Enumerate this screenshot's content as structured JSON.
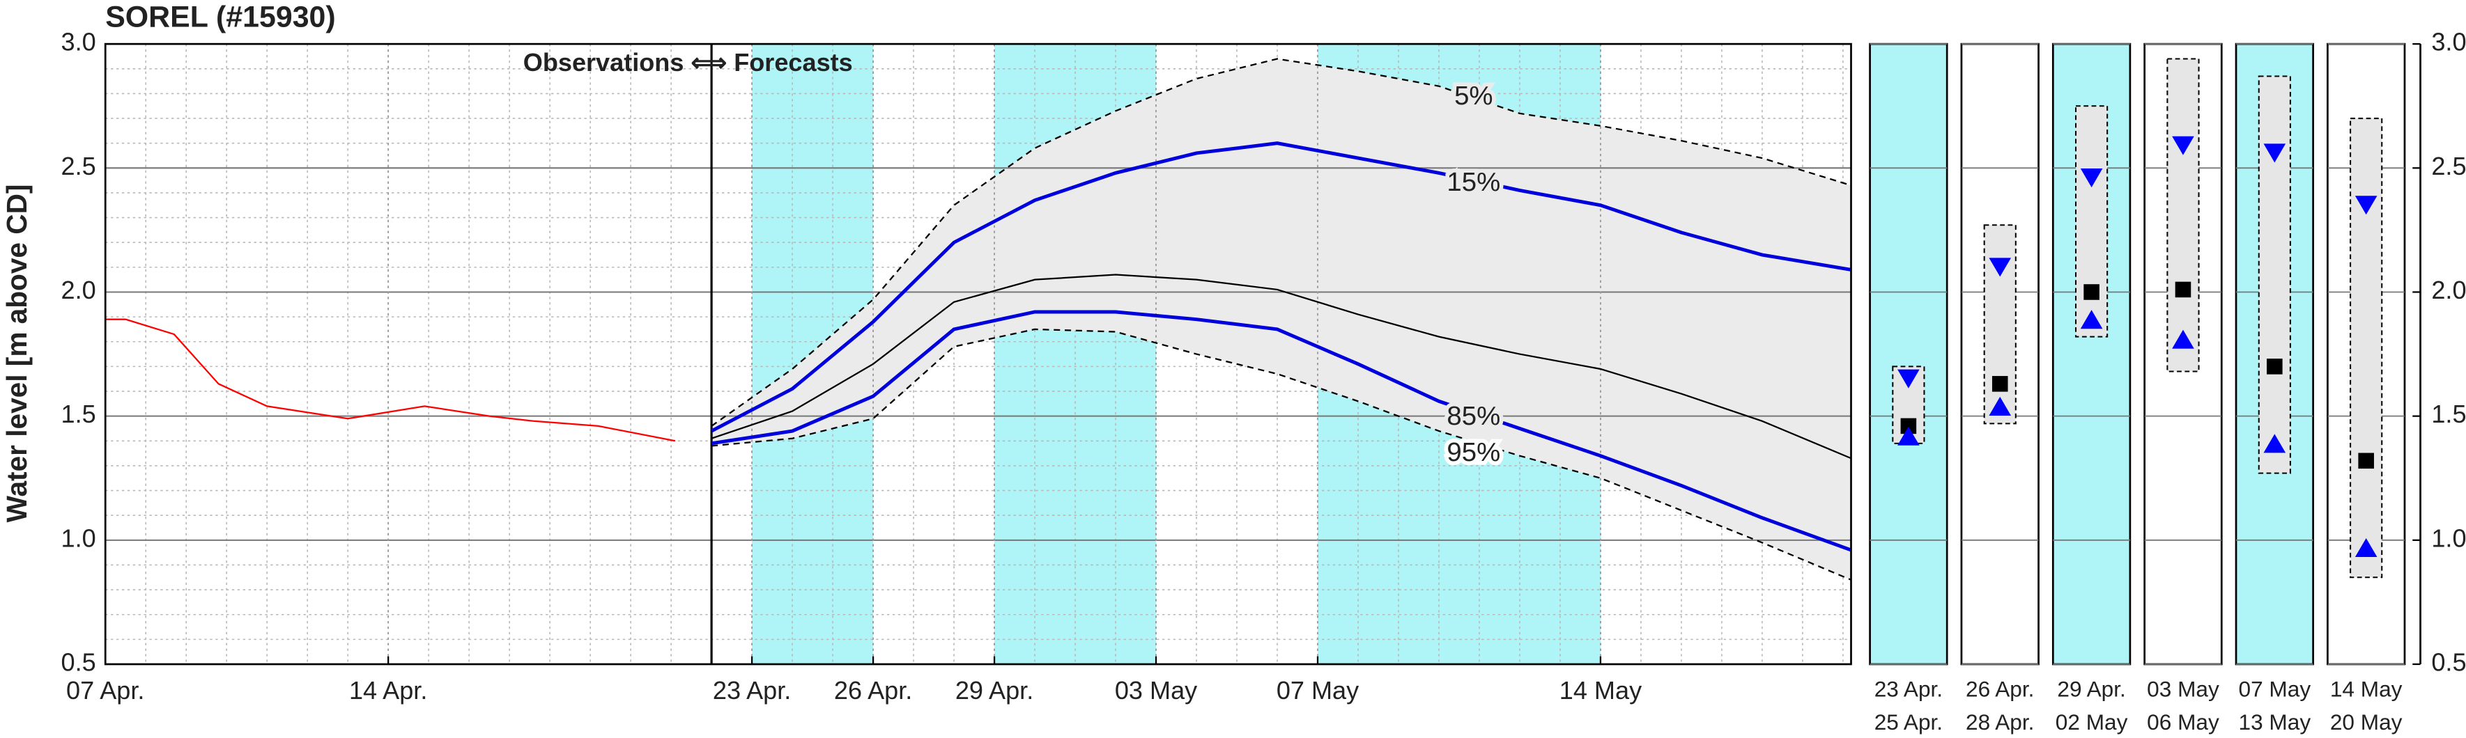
{
  "chart_data": [
    {
      "type": "line",
      "title": "SOREL (#15930)",
      "y_label": "Water level [m above CD]",
      "annotation": "Observations ⟺ Forecasts",
      "xlim": [
        7,
        50.2
      ],
      "xticks": [
        {
          "value": 7,
          "label": "07 Apr."
        },
        {
          "value": 14,
          "label": "14 Apr."
        },
        {
          "value": 23,
          "label": "23 Apr."
        },
        {
          "value": 26,
          "label": "26 Apr."
        },
        {
          "value": 29,
          "label": "29 Apr."
        },
        {
          "value": 33,
          "label": "03 May"
        },
        {
          "value": 37,
          "label": "07 May"
        },
        {
          "value": 44,
          "label": "14 May"
        }
      ],
      "ylim": [
        0.5,
        3.0
      ],
      "yticks": [
        0.5,
        {
          "value": 1,
          "label": "1.0"
        },
        1.5,
        {
          "value": 2,
          "label": "2.0"
        },
        2.5,
        {
          "value": 3,
          "label": "3.0"
        }
      ],
      "minor_grid": {
        "x": 1,
        "y": 0.1
      },
      "divider": 22,
      "shaded_periods": [
        [
          23,
          26
        ],
        [
          29,
          33
        ],
        [
          37,
          44
        ]
      ],
      "shade_color": "#aff4f6",
      "band_color": "#ebebeb",
      "series": [
        {
          "color": "#ff0000",
          "x": [
            7,
            7.5,
            8.7,
            9.8,
            11,
            12.2,
            13,
            14.9,
            16.5,
            17.6,
            19.2,
            21.1
          ],
          "values": [
            1.89,
            1.89,
            1.83,
            1.63,
            1.54,
            1.51,
            1.49,
            1.54,
            1.5,
            1.48,
            1.46,
            1.4
          ]
        },
        {
          "name": "5%",
          "color": "#000000",
          "dash": true,
          "x": [
            22,
            24,
            26,
            28,
            30,
            32,
            34,
            36,
            38,
            40,
            42,
            44,
            46,
            48,
            50.2
          ],
          "values": [
            1.46,
            1.69,
            1.97,
            2.35,
            2.58,
            2.73,
            2.86,
            2.94,
            2.89,
            2.83,
            2.72,
            2.67,
            2.61,
            2.54,
            2.43
          ]
        },
        {
          "name": "15%",
          "color": "#0000dd",
          "x": [
            22,
            24,
            26,
            28,
            30,
            32,
            34,
            36,
            38,
            40,
            42,
            44,
            46,
            48,
            50.2
          ],
          "values": [
            1.44,
            1.61,
            1.88,
            2.2,
            2.37,
            2.48,
            2.56,
            2.6,
            2.54,
            2.48,
            2.41,
            2.35,
            2.24,
            2.15,
            2.09
          ]
        },
        {
          "color": "#000000",
          "x": [
            22,
            24,
            26,
            28,
            30,
            32,
            34,
            36,
            38,
            40,
            42,
            44,
            46,
            48,
            50.2
          ],
          "values": [
            1.41,
            1.52,
            1.71,
            1.96,
            2.05,
            2.07,
            2.05,
            2.01,
            1.91,
            1.82,
            1.75,
            1.69,
            1.59,
            1.48,
            1.33
          ]
        },
        {
          "name": "85%",
          "color": "#0000dd",
          "x": [
            22,
            24,
            26,
            28,
            30,
            32,
            34,
            36,
            38,
            40,
            42,
            44,
            46,
            48,
            50.2
          ],
          "values": [
            1.39,
            1.44,
            1.58,
            1.85,
            1.92,
            1.92,
            1.89,
            1.85,
            1.71,
            1.56,
            1.45,
            1.34,
            1.22,
            1.09,
            0.96
          ]
        },
        {
          "name": "95%",
          "color": "#000000",
          "dash": true,
          "x": [
            22,
            24,
            26,
            28,
            30,
            32,
            34,
            36,
            38,
            40,
            42,
            44,
            46,
            48,
            50.2
          ],
          "values": [
            1.38,
            1.41,
            1.49,
            1.78,
            1.85,
            1.84,
            1.75,
            1.67,
            1.56,
            1.44,
            1.34,
            1.25,
            1.12,
            0.99,
            0.84
          ]
        }
      ]
    },
    {
      "type": "range",
      "categories": [
        [
          "23 Apr.",
          "25 Apr."
        ],
        [
          "26 Apr.",
          "28 Apr."
        ],
        [
          "29 Apr.",
          "02 May"
        ],
        [
          "03 May",
          "06 May"
        ],
        [
          "07 May",
          "13 May"
        ],
        [
          "14 May",
          "20 May"
        ]
      ],
      "shaded": [
        true,
        false,
        true,
        false,
        true,
        false
      ],
      "shade_color": "#aff4f6",
      "box_color": "#e6e6e6",
      "marker_color": "#0000ff",
      "ylim": [
        0.5,
        3.0
      ],
      "yticks": [
        0.5,
        {
          "value": 1,
          "label": "1.0"
        },
        1.5,
        {
          "value": 2,
          "label": "2.0"
        },
        2.5,
        {
          "value": 3,
          "label": "3.0"
        }
      ],
      "upper": [
        1.7,
        2.27,
        2.75,
        2.94,
        2.87,
        2.7
      ],
      "lower": [
        1.39,
        1.47,
        1.82,
        1.68,
        1.27,
        0.85
      ],
      "p15": [
        1.65,
        2.1,
        2.46,
        2.59,
        2.56,
        2.35
      ],
      "median": [
        1.46,
        1.63,
        2.0,
        2.01,
        1.7,
        1.32
      ],
      "p85": [
        1.42,
        1.54,
        1.89,
        1.81,
        1.39,
        0.97
      ]
    }
  ]
}
